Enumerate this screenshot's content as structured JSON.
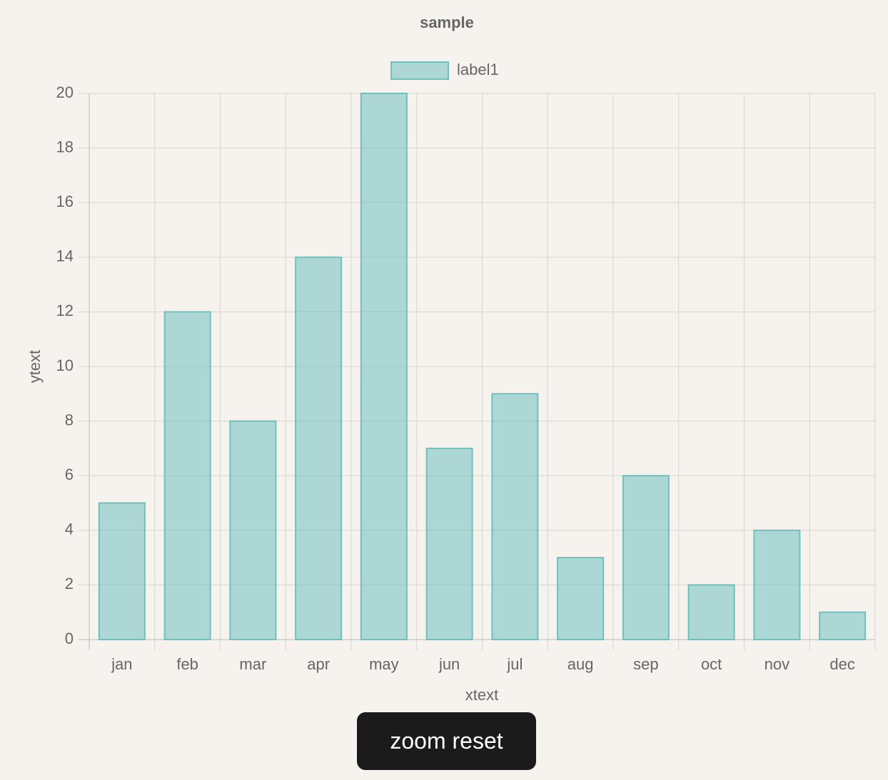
{
  "chart_data": {
    "type": "bar",
    "title": "sample",
    "x_label": "xtext",
    "y_label": "ytext",
    "categories": [
      "jan",
      "feb",
      "mar",
      "apr",
      "may",
      "jun",
      "jul",
      "aug",
      "sep",
      "oct",
      "nov",
      "dec"
    ],
    "series": [
      {
        "name": "label1",
        "color": "#6fbfbd",
        "values": [
          5,
          12,
          8,
          14,
          20,
          7,
          9,
          3,
          6,
          2,
          4,
          1
        ]
      }
    ],
    "ylim": [
      0,
      20
    ],
    "yticks": [
      0,
      2,
      4,
      6,
      8,
      10,
      12,
      14,
      16,
      18,
      20
    ],
    "grid": true,
    "legend": "top"
  },
  "button": {
    "label": "zoom reset"
  }
}
